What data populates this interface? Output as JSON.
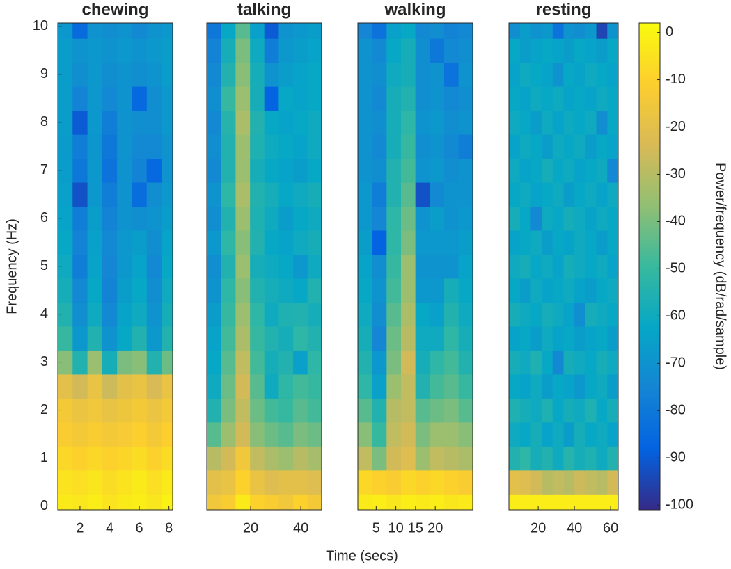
{
  "chart_data": [
    {
      "type": "heatmap",
      "title": "chewing",
      "ylabel": "Frequency (Hz)",
      "x": [
        1,
        2,
        3,
        4,
        5,
        6,
        7,
        8
      ],
      "y": [
        0,
        0.5,
        1,
        1.5,
        2,
        2.5,
        3,
        3.5,
        4,
        4.5,
        5,
        5.5,
        6,
        6.5,
        7,
        7.5,
        8,
        8.5,
        9,
        9.5,
        10
      ],
      "values": [
        [
          -3,
          -4,
          -2,
          -5,
          -3,
          -2,
          -4,
          -1
        ],
        [
          -5,
          -6,
          -4,
          -7,
          -5,
          -3,
          -6,
          -3
        ],
        [
          -8,
          -10,
          -8,
          -10,
          -9,
          -7,
          -10,
          -7
        ],
        [
          -12,
          -14,
          -12,
          -14,
          -13,
          -11,
          -14,
          -11
        ],
        [
          -14,
          -17,
          -15,
          -18,
          -16,
          -14,
          -17,
          -14
        ],
        [
          -20,
          -25,
          -18,
          -26,
          -20,
          -18,
          -24,
          -18
        ],
        [
          -38,
          -55,
          -35,
          -58,
          -40,
          -38,
          -55,
          -42
        ],
        [
          -50,
          -68,
          -55,
          -70,
          -62,
          -55,
          -68,
          -55
        ],
        [
          -55,
          -72,
          -60,
          -74,
          -64,
          -60,
          -70,
          -58
        ],
        [
          -58,
          -74,
          -62,
          -76,
          -66,
          -62,
          -72,
          -60
        ],
        [
          -60,
          -78,
          -64,
          -75,
          -68,
          -64,
          -74,
          -62
        ],
        [
          -62,
          -76,
          -65,
          -74,
          -68,
          -66,
          -72,
          -64
        ],
        [
          -64,
          -78,
          -66,
          -76,
          -70,
          -72,
          -70,
          -66
        ],
        [
          -65,
          -92,
          -68,
          -78,
          -70,
          -84,
          -72,
          -68
        ],
        [
          -66,
          -80,
          -68,
          -82,
          -70,
          -76,
          -86,
          -70
        ],
        [
          -67,
          -78,
          -69,
          -80,
          -70,
          -74,
          -74,
          -70
        ],
        [
          -66,
          -90,
          -68,
          -78,
          -70,
          -72,
          -72,
          -68
        ],
        [
          -66,
          -76,
          -68,
          -74,
          -70,
          -86,
          -72,
          -68
        ],
        [
          -66,
          -72,
          -68,
          -72,
          -70,
          -72,
          -70,
          -66
        ],
        [
          -66,
          -70,
          -68,
          -70,
          -68,
          -70,
          -68,
          -66
        ],
        [
          -68,
          -85,
          -70,
          -72,
          -70,
          -74,
          -70,
          -68
        ]
      ],
      "xlim": [
        0.5,
        8.25
      ],
      "xticks": [
        2,
        4,
        6,
        8
      ],
      "ylim": [
        -0.08,
        10.07
      ],
      "yticks": [
        0,
        1,
        2,
        3,
        4,
        5,
        6,
        7,
        8,
        9,
        10
      ]
    },
    {
      "type": "heatmap",
      "title": "talking",
      "x": [
        5.4,
        11.1,
        16.9,
        22.6,
        28.3,
        34.1,
        39.8,
        45.5
      ],
      "y": [
        0,
        0.5,
        1,
        1.5,
        2,
        2.5,
        3,
        3.5,
        4,
        4.5,
        5,
        5.5,
        6,
        6.5,
        7,
        7.5,
        8,
        8.5,
        9,
        9.5,
        10
      ],
      "values": [
        [
          -15,
          -12,
          -3,
          -10,
          -12,
          -15,
          -10,
          -14
        ],
        [
          -20,
          -18,
          -10,
          -18,
          -22,
          -20,
          -20,
          -22
        ],
        [
          -30,
          -25,
          -15,
          -28,
          -32,
          -35,
          -30,
          -33
        ],
        [
          -45,
          -35,
          -25,
          -38,
          -42,
          -45,
          -40,
          -42
        ],
        [
          -55,
          -40,
          -28,
          -42,
          -48,
          -50,
          -45,
          -48
        ],
        [
          -60,
          -42,
          -25,
          -45,
          -60,
          -52,
          -48,
          -50
        ],
        [
          -62,
          -45,
          -28,
          -48,
          -58,
          -55,
          -65,
          -52
        ],
        [
          -64,
          -48,
          -32,
          -50,
          -55,
          -58,
          -52,
          -55
        ],
        [
          -66,
          -50,
          -35,
          -52,
          -60,
          -56,
          -55,
          -58
        ],
        [
          -70,
          -52,
          -38,
          -55,
          -58,
          -60,
          -62,
          -55
        ],
        [
          -72,
          -55,
          -35,
          -58,
          -60,
          -62,
          -68,
          -60
        ],
        [
          -68,
          -52,
          -38,
          -55,
          -62,
          -64,
          -60,
          -58
        ],
        [
          -72,
          -55,
          -35,
          -56,
          -60,
          -66,
          -62,
          -60
        ],
        [
          -70,
          -52,
          -32,
          -55,
          -58,
          -62,
          -60,
          -58
        ],
        [
          -74,
          -55,
          -35,
          -58,
          -62,
          -64,
          -66,
          -62
        ],
        [
          -72,
          -55,
          -35,
          -56,
          -60,
          -62,
          -64,
          -60
        ],
        [
          -74,
          -54,
          -32,
          -55,
          -62,
          -64,
          -62,
          -60
        ],
        [
          -72,
          -50,
          -35,
          -58,
          -88,
          -62,
          -64,
          -62
        ],
        [
          -74,
          -55,
          -38,
          -58,
          -70,
          -66,
          -64,
          -62
        ],
        [
          -76,
          -58,
          -40,
          -60,
          -78,
          -68,
          -66,
          -64
        ],
        [
          -80,
          -62,
          -45,
          -65,
          -90,
          -70,
          -68,
          -66
        ]
      ],
      "xlim": [
        2.5,
        48.3
      ],
      "xticks": [
        20,
        40
      ],
      "ylim": [
        -0.08,
        10.07
      ]
    },
    {
      "type": "heatmap",
      "title": "walking",
      "x": [
        2.2,
        5.8,
        9.5,
        13.1,
        16.8,
        20.4,
        24.1,
        27.7
      ],
      "y": [
        0,
        0.5,
        1,
        1.5,
        2,
        2.5,
        3,
        3.5,
        4,
        4.5,
        5,
        5.5,
        6,
        6.5,
        7,
        7.5,
        8,
        8.5,
        9,
        9.5,
        10
      ],
      "values": [
        [
          -3,
          -2,
          -4,
          -2,
          -3,
          -2,
          -4,
          -3
        ],
        [
          -8,
          -10,
          -12,
          -8,
          -10,
          -8,
          -10,
          -12
        ],
        [
          -28,
          -40,
          -25,
          -22,
          -35,
          -28,
          -30,
          -32
        ],
        [
          -38,
          -50,
          -28,
          -25,
          -40,
          -35,
          -35,
          -38
        ],
        [
          -45,
          -55,
          -30,
          -28,
          -45,
          -42,
          -40,
          -45
        ],
        [
          -52,
          -65,
          -35,
          -28,
          -55,
          -48,
          -45,
          -50
        ],
        [
          -55,
          -68,
          -40,
          -25,
          -58,
          -52,
          -48,
          -55
        ],
        [
          -58,
          -75,
          -42,
          -30,
          -60,
          -60,
          -52,
          -58
        ],
        [
          -60,
          -72,
          -45,
          -32,
          -62,
          -65,
          -55,
          -60
        ],
        [
          -62,
          -70,
          -48,
          -35,
          -68,
          -68,
          -58,
          -62
        ],
        [
          -64,
          -72,
          -50,
          -35,
          -70,
          -70,
          -70,
          -64
        ],
        [
          -66,
          -88,
          -52,
          -40,
          -68,
          -68,
          -68,
          -66
        ],
        [
          -68,
          -75,
          -52,
          -42,
          -70,
          -66,
          -70,
          -68
        ],
        [
          -68,
          -78,
          -55,
          -45,
          -92,
          -74,
          -70,
          -70
        ],
        [
          -70,
          -72,
          -55,
          -48,
          -70,
          -68,
          -72,
          -70
        ],
        [
          -70,
          -74,
          -58,
          -50,
          -72,
          -70,
          -74,
          -78
        ],
        [
          -70,
          -72,
          -58,
          -52,
          -70,
          -68,
          -72,
          -70
        ],
        [
          -70,
          -74,
          -58,
          -55,
          -72,
          -70,
          -74,
          -72
        ],
        [
          -70,
          -72,
          -60,
          -58,
          -72,
          -70,
          -82,
          -70
        ],
        [
          -70,
          -74,
          -62,
          -58,
          -72,
          -80,
          -74,
          -72
        ],
        [
          -75,
          -82,
          -65,
          -62,
          -74,
          -72,
          -76,
          -74
        ]
      ],
      "xlim": [
        0.35,
        29.5
      ],
      "xticks": [
        5,
        10,
        15,
        20
      ],
      "ylim": [
        -0.08,
        10.07
      ]
    },
    {
      "type": "heatmap",
      "title": "resting",
      "x": [
        6.8,
        12.9,
        18.9,
        24.9,
        31.0,
        37.0,
        43.0,
        49.1,
        55.1,
        61.2
      ],
      "y": [
        0,
        0.5,
        1,
        1.5,
        2,
        2.5,
        3,
        3.5,
        4,
        4.5,
        5,
        5.5,
        6,
        6.5,
        7,
        7.5,
        8,
        8.5,
        9,
        9.5,
        10
      ],
      "values": [
        [
          -2,
          -2,
          -2,
          -2,
          -2,
          -2,
          -2,
          -2,
          -2,
          -2
        ],
        [
          -20,
          -22,
          -25,
          -30,
          -28,
          -30,
          -26,
          -28,
          -30,
          -25
        ],
        [
          -55,
          -52,
          -58,
          -55,
          -60,
          -54,
          -58,
          -56,
          -60,
          -55
        ],
        [
          -60,
          -62,
          -58,
          -64,
          -60,
          -66,
          -58,
          -62,
          -60,
          -64
        ],
        [
          -56,
          -58,
          -60,
          -56,
          -62,
          -58,
          -60,
          -56,
          -62,
          -58
        ],
        [
          -62,
          -64,
          -60,
          -66,
          -62,
          -64,
          -68,
          -62,
          -60,
          -66
        ],
        [
          -58,
          -60,
          -56,
          -62,
          -74,
          -58,
          -60,
          -62,
          -58,
          -60
        ],
        [
          -64,
          -62,
          -66,
          -60,
          -64,
          -62,
          -66,
          -64,
          -62,
          -66
        ],
        [
          -58,
          -60,
          -62,
          -58,
          -60,
          -64,
          -72,
          -58,
          -60,
          -62
        ],
        [
          -62,
          -66,
          -60,
          -64,
          -62,
          -60,
          -64,
          -66,
          -62,
          -60
        ],
        [
          -60,
          -58,
          -62,
          -60,
          -64,
          -58,
          -60,
          -62,
          -60,
          -64
        ],
        [
          -64,
          -62,
          -60,
          -66,
          -62,
          -64,
          -60,
          -62,
          -66,
          -62
        ],
        [
          -58,
          -62,
          -74,
          -60,
          -62,
          -58,
          -60,
          -64,
          -60,
          -62
        ],
        [
          -62,
          -60,
          -64,
          -62,
          -60,
          -66,
          -62,
          -60,
          -64,
          -60
        ],
        [
          -60,
          -64,
          -62,
          -58,
          -62,
          -60,
          -64,
          -62,
          -60,
          -74
        ],
        [
          -64,
          -60,
          -62,
          -66,
          -60,
          -62,
          -60,
          -66,
          -62,
          -64
        ],
        [
          -60,
          -62,
          -66,
          -60,
          -64,
          -60,
          -62,
          -60,
          -72,
          -62
        ],
        [
          -62,
          -64,
          -60,
          -62,
          -60,
          -64,
          -62,
          -64,
          -60,
          -62
        ],
        [
          -64,
          -60,
          -62,
          -64,
          -70,
          -62,
          -64,
          -60,
          -62,
          -64
        ],
        [
          -62,
          -66,
          -64,
          -62,
          -64,
          -66,
          -62,
          -64,
          -66,
          -62
        ],
        [
          -72,
          -66,
          -70,
          -68,
          -82,
          -70,
          -72,
          -68,
          -95,
          -70
        ]
      ],
      "xlim": [
        3.8,
        64.2
      ],
      "xticks": [
        20,
        40,
        60
      ],
      "ylim": [
        -0.08,
        10.07
      ]
    }
  ],
  "figure": {
    "xlabel": "Time (secs)",
    "colorbar": {
      "label": "Power/frequency (dB/rad/sample)",
      "clim": [
        -101,
        2
      ],
      "ticks": [
        0,
        -10,
        -20,
        -30,
        -40,
        -50,
        -60,
        -70,
        -80,
        -90,
        -100
      ],
      "colormap": [
        "#352a87",
        "#0363e1",
        "#1485d4",
        "#06a7c6",
        "#38b99e",
        "#92bf73",
        "#d9ba56",
        "#fcce2e",
        "#f9fb0e"
      ]
    }
  }
}
